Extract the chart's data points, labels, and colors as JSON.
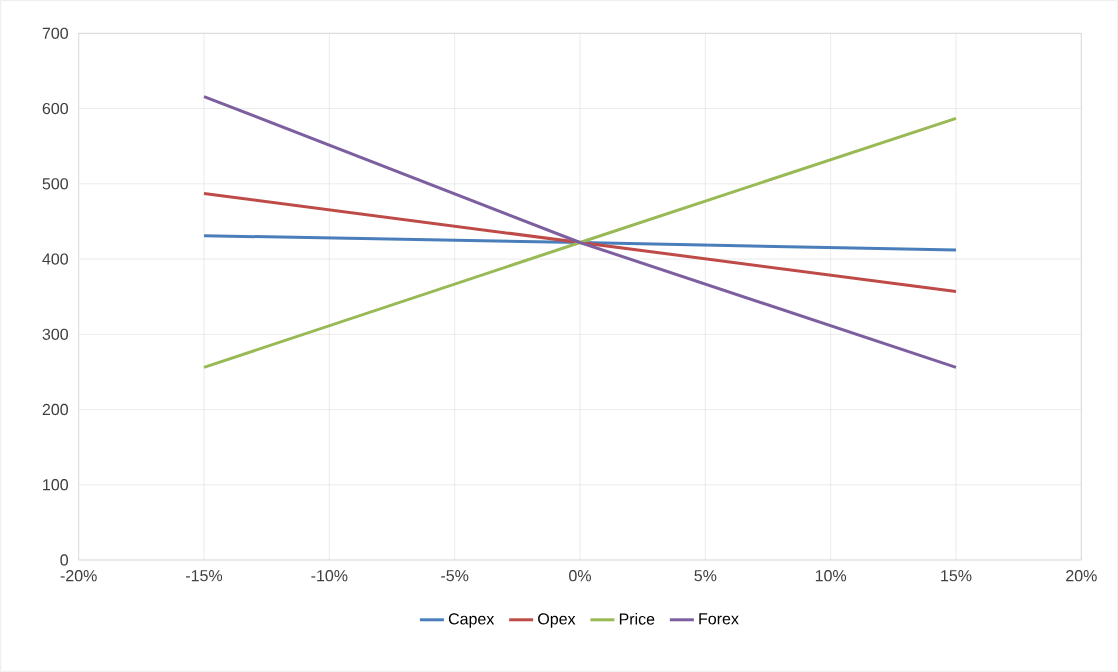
{
  "chart_data": {
    "type": "line",
    "x": [
      -15,
      0,
      15
    ],
    "xlim": [
      -20,
      20
    ],
    "xticks": [
      {
        "value": -20,
        "label": "-20%"
      },
      {
        "value": -15,
        "label": "-15%"
      },
      {
        "value": -10,
        "label": "-10%"
      },
      {
        "value": -5,
        "label": "-5%"
      },
      {
        "value": 0,
        "label": "0%"
      },
      {
        "value": 5,
        "label": "5%"
      },
      {
        "value": 10,
        "label": "10%"
      },
      {
        "value": 15,
        "label": "15%"
      },
      {
        "value": 20,
        "label": "20%"
      }
    ],
    "ylim": [
      0,
      700
    ],
    "yticks": [
      0,
      100,
      200,
      300,
      400,
      500,
      600,
      700
    ],
    "series": [
      {
        "name": "Capex",
        "color": "#4a7ebb",
        "values": [
          431,
          422,
          412
        ]
      },
      {
        "name": "Opex",
        "color": "#be4b48",
        "values": [
          487,
          422,
          357
        ]
      },
      {
        "name": "Price",
        "color": "#98b954",
        "values": [
          256,
          422,
          587
        ]
      },
      {
        "name": "Forex",
        "color": "#7d5fa0",
        "values": [
          616,
          422,
          256
        ]
      }
    ],
    "grid": true,
    "legend": "bottom",
    "marker": "none",
    "line_style": "solid"
  }
}
